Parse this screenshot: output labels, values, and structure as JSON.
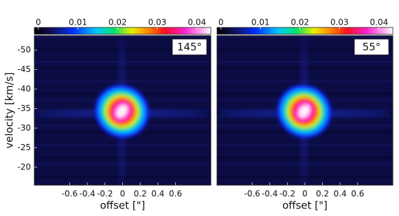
{
  "chart_data": [
    {
      "type": "heatmap",
      "annotation": "145°",
      "xlabel": "offset [\"]",
      "ylabel": "velocity [km/s]",
      "xlim": [
        -1,
        1
      ],
      "xticks": [
        -0.6,
        -0.4,
        -0.2,
        0,
        0.2,
        0.4,
        0.6
      ],
      "ylim": [
        -15.4,
        -53.7
      ],
      "yticks": [
        -50,
        -45,
        -40,
        -35,
        -30,
        -25,
        -20
      ],
      "colorbar_lim": [
        -0.001,
        0.0435
      ],
      "colorbar_ticks": [
        0,
        0.01,
        0.02,
        0.03,
        0.04
      ]
    },
    {
      "type": "heatmap",
      "annotation": "55°",
      "xlabel": "offset [\"]",
      "xlim": [
        -1,
        1
      ],
      "xticks": [
        -0.6,
        -0.4,
        -0.2,
        0,
        0.2,
        0.4,
        0.6
      ],
      "ylim": [
        -15.4,
        -53.7
      ],
      "colorbar_lim": [
        -0.001,
        0.0435
      ],
      "colorbar_ticks": [
        0,
        0.01,
        0.02,
        0.03,
        0.04
      ]
    }
  ]
}
